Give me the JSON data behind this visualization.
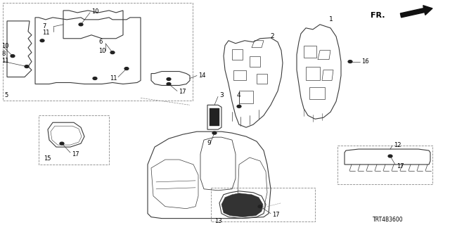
{
  "bg_color": "#ffffff",
  "line_color": "#3a3a3a",
  "label_color": "#000000",
  "part_number_code": "TRT4B3600",
  "lw": 0.8,
  "fig_w": 6.4,
  "fig_h": 3.2,
  "dpi": 100
}
